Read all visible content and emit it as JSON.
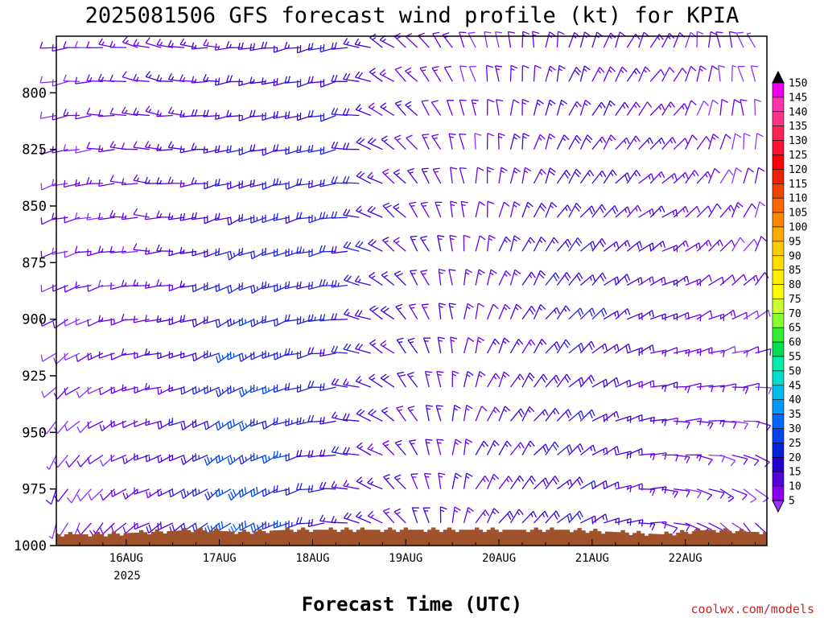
{
  "chart_data": {
    "type": "wind-barb",
    "title": "2025081506 GFS forecast wind profile (kt) for KPIA",
    "xlabel": "Forecast Time (UTC)",
    "ylabel": "",
    "y_axis": {
      "scale": "pressure (inverted)",
      "ylim": [
        1000,
        775
      ],
      "ticks": [
        800,
        825,
        850,
        875,
        900,
        925,
        950,
        975,
        1000
      ],
      "tick_labels": [
        "800",
        "825",
        "850",
        "875",
        "900",
        "925",
        "950",
        "975",
        "1000"
      ]
    },
    "x_axis": {
      "tick_labels": [
        "16AUG",
        "17AUG",
        "18AUG",
        "19AUG",
        "20AUG",
        "21AUG",
        "22AUG"
      ],
      "year_label": "2025",
      "start": "2025-08-15 06Z",
      "end": "2025-08-22 18Z",
      "step_hours": 3
    },
    "levels": [
      780,
      795,
      810,
      825,
      840,
      855,
      870,
      885,
      900,
      915,
      930,
      945,
      960,
      975,
      990
    ],
    "wind_keyframes": [
      {
        "hour": 0,
        "regimes": [
          {
            "top": 780,
            "dir": 260,
            "spd": 10
          },
          {
            "top": 870,
            "dir": 250,
            "spd": 10
          },
          {
            "top": 990,
            "dir": 200,
            "spd": 8
          }
        ]
      },
      {
        "hour": 24,
        "regimes": [
          {
            "top": 780,
            "dir": 285,
            "spd": 14
          },
          {
            "top": 870,
            "dir": 270,
            "spd": 12
          },
          {
            "top": 990,
            "dir": 240,
            "spd": 14
          }
        ]
      },
      {
        "hour": 48,
        "regimes": [
          {
            "top": 780,
            "dir": 265,
            "spd": 16
          },
          {
            "top": 870,
            "dir": 245,
            "spd": 22
          },
          {
            "top": 990,
            "dir": 230,
            "spd": 30
          }
        ]
      },
      {
        "hour": 72,
        "regimes": [
          {
            "top": 780,
            "dir": 255,
            "spd": 20
          },
          {
            "top": 870,
            "dir": 260,
            "spd": 22
          },
          {
            "top": 990,
            "dir": 270,
            "spd": 18
          }
        ]
      },
      {
        "hour": 84,
        "regimes": [
          {
            "top": 780,
            "dir": 300,
            "spd": 15
          },
          {
            "top": 870,
            "dir": 300,
            "spd": 18
          },
          {
            "top": 990,
            "dir": 300,
            "spd": 15
          }
        ]
      },
      {
        "hour": 108,
        "regimes": [
          {
            "top": 780,
            "dir": 340,
            "spd": 10
          },
          {
            "top": 870,
            "dir": 10,
            "spd": 12
          },
          {
            "top": 990,
            "dir": 30,
            "spd": 15
          }
        ]
      },
      {
        "hour": 132,
        "regimes": [
          {
            "top": 780,
            "dir": 15,
            "spd": 15
          },
          {
            "top": 870,
            "dir": 40,
            "spd": 20
          },
          {
            "top": 990,
            "dir": 50,
            "spd": 20
          }
        ]
      },
      {
        "hour": 156,
        "regimes": [
          {
            "top": 780,
            "dir": 30,
            "spd": 12
          },
          {
            "top": 870,
            "dir": 60,
            "spd": 15
          },
          {
            "top": 990,
            "dir": 100,
            "spd": 12
          }
        ]
      },
      {
        "hour": 180,
        "regimes": [
          {
            "top": 780,
            "dir": 330,
            "spd": 8
          },
          {
            "top": 870,
            "dir": 30,
            "spd": 10
          },
          {
            "top": 990,
            "dir": 140,
            "spd": 10
          }
        ]
      }
    ],
    "surface_pressure": {
      "hours": [
        0,
        12,
        24,
        36,
        48,
        60,
        72,
        84,
        96,
        108,
        120,
        132,
        144,
        156,
        168,
        180
      ],
      "values": [
        995,
        995,
        994,
        993,
        994,
        993,
        993,
        993,
        993,
        993,
        993,
        993,
        994,
        995,
        993,
        994
      ]
    },
    "colorbar": {
      "min": 5,
      "max": 150,
      "step": 5,
      "labels": [
        "150",
        "145",
        "140",
        "135",
        "130",
        "125",
        "120",
        "115",
        "110",
        "105",
        "100",
        "95",
        "90",
        "85",
        "80",
        "75",
        "70",
        "65",
        "60",
        "55",
        "50",
        "45",
        "40",
        "35",
        "30",
        "25",
        "20",
        "15",
        "10",
        "5"
      ],
      "colors": [
        "#000000",
        "#ee00ee",
        "#ff33aa",
        "#ff3388",
        "#ff2255",
        "#ff1133",
        "#ff0000",
        "#ee2200",
        "#ee4400",
        "#ff6600",
        "#ff8800",
        "#ffaa00",
        "#ffcc00",
        "#ffdd00",
        "#ffee00",
        "#ffff00",
        "#ccff33",
        "#88ff33",
        "#33ee33",
        "#00dd55",
        "#00eeaa",
        "#00ddcc",
        "#00bbee",
        "#0099ff",
        "#0066ff",
        "#0044ee",
        "#0022dd",
        "#2200cc",
        "#5500dd",
        "#8800ee",
        "#9933ff"
      ]
    },
    "terrain_color": "#a0522d",
    "credit": "coolwx.com/models",
    "grid": false,
    "legend": "colorbar right"
  }
}
